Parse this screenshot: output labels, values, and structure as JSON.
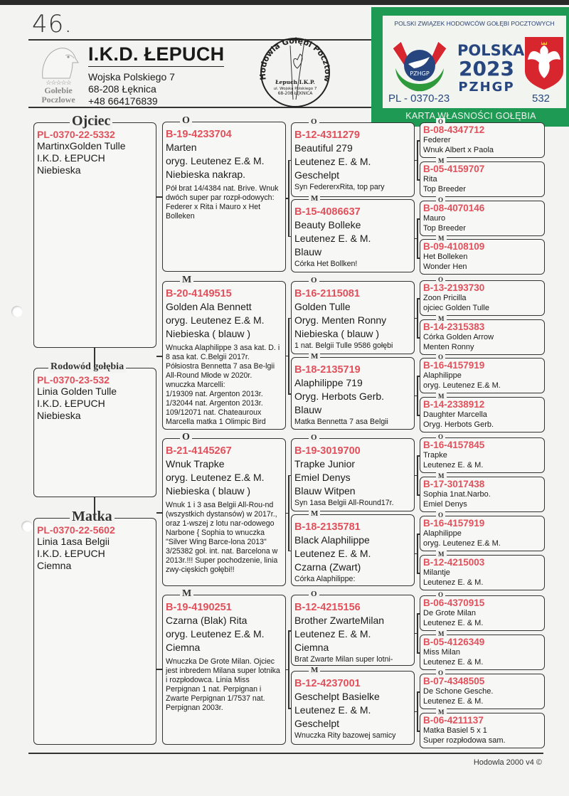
{
  "handwritten_number": "46.",
  "logo": {
    "stars": "☆☆☆☆☆",
    "line1": "Gołebie",
    "line2": "Poczlowe"
  },
  "breeder": {
    "name": "I.K.D. ŁEPUCH",
    "street": "Wojska Polskiego 7",
    "city": "68-208 Łęknica",
    "phone": "+48  664176839"
  },
  "stamp": {
    "ring_text": "Hodowla Gołębi Pocztowych",
    "line1": "Łepuch I.K.P.",
    "line2": "ul. Wojska Polskiego 7",
    "line3": "68-208 ŁĘKNICA"
  },
  "card": {
    "organization": "POLSKI ZWIĄZEK HODOWCÓW GOŁĘBI POCZTOWYCH",
    "country": "POLSKA",
    "year": "2023",
    "union": "PZHGP",
    "badge_text": "PZHGP",
    "ring": "PL - 0370-23",
    "number": "532",
    "title": "KARTA  WŁASNOŚCI GOŁĘBIA POCZTOWEGO",
    "colors": {
      "green": "#1f9a55",
      "navy": "#27467f",
      "red": "#d8262f"
    }
  },
  "colors": {
    "ring_red": "#e2505b"
  },
  "generation1": [
    {
      "label": "Ojciec",
      "ring": "PL-0370-22-5332",
      "lines": [
        "MartinxGolden Tulle",
        "I.K.D. ŁEPUCH",
        "Niebieska"
      ]
    },
    {
      "label": "Rodowód gołębia",
      "ring": "PL-0370-23-532",
      "lines": [
        "Linia Golden Tulle",
        "I.K.D. ŁEPUCH",
        "Niebieska"
      ]
    },
    {
      "label": "Matka",
      "ring": "PL-0370-22-5602",
      "lines": [
        "Linia 1asa Belgii",
        "I.K.D. ŁEPUCH",
        "Ciemna"
      ]
    }
  ],
  "generation2": [
    {
      "label": "O",
      "ring": "B-19-4233704",
      "lines": [
        "Marten",
        "oryg. Leutenez E.& M.",
        "Niebieska nakrap."
      ],
      "note": "Pół brat 14/4384 nat. Brive. Wnuk dwóch super par rozpł-odowych: Federer x Rita i Mauro x Het Bolleken"
    },
    {
      "label": "M",
      "ring": "B-20-4149515",
      "lines": [
        "Golden Ala Bennett",
        "oryg. Leutenez E.& M.",
        "Niebieska ( blauw )"
      ],
      "note": "Wnucka Alaphilippe 3 asa kat. D. i 8 asa kat. C.Belgii 2017r. Półsiostra Bennetta 7 asa Be-lgii All-Round Młode w 2020r.\n        wnuczka Marcelli:\n1/19309 nat. Argenton 2013r.\n1/32044 nat. Argenton 2013r.\n109/12071 nat. Chateauroux\nMarcella matka 1 Olimpic Bird"
    },
    {
      "label": "O",
      "ring": "B-21-4145267",
      "lines": [
        "Wnuk Trapke",
        "oryg. Leutenez E.& M.",
        "Niebieska ( blauw )"
      ],
      "note": "Wnuk 1 i 3 asa Belgii All-Rou-nd (wszystkich dystansów) w 2017r., oraz 1-wszej z lotu nar-odowego Narbone { Sophia to wnuczka \"Silver Wing Barce-lona 2013\" 3/25382 goł. int. nat. Barcelona w 2013r.!!! Super pochodzenie, linia zwy-cięskich gołębi!!"
    },
    {
      "label": "M",
      "ring": "B-19-4190251",
      "lines": [
        "Czarna (Blak) Rita",
        "oryg. Leutenez E.& M.",
        "Ciemna"
      ],
      "note": "Wnuczka De Grote Milan. Ojciec jest inbredem Milana super lotnika i rozpłodowca. Linia Miss Perpignan 1 nat. Perpignan i Zwarte Perpignan 1/7537 nat. Perpignan 2003r."
    }
  ],
  "generation3": [
    {
      "label": "O",
      "ring": "B-12-4311279",
      "lines": [
        "Beautiful 279",
        "Leutenez E. & M.",
        "Geschelpt"
      ],
      "note": "Syn FedererxRita, top pary"
    },
    {
      "label": "M",
      "ring": "B-15-4086637",
      "lines": [
        "Beauty Bolleke",
        "Leutenez E. & M.",
        "Blauw"
      ],
      "note": "Córka Het Bollken!"
    },
    {
      "label": "O",
      "ring": "B-16-2115081",
      "lines": [
        "Golden Tulle",
        "Oryg. Menten Ronny",
        "Niebieska ( blauw )"
      ],
      "note": "1 nat. Belgii Tulle 9586 gołębi"
    },
    {
      "label": "M",
      "ring": "B-18-2135719",
      "lines": [
        "Alaphilippe 719",
        "Oryg. Herbots Gerb.",
        "Blauw"
      ],
      "note": "Matka Bennetta 7 asa Belgii"
    },
    {
      "label": "O",
      "ring": "B-19-3019700",
      "lines": [
        "Trapke Junior",
        "Emiel Denys",
        "Blauw Witpen"
      ],
      "note": "Syn 1asa Belgii All-Round17r."
    },
    {
      "label": "M",
      "ring": "B-18-2135781",
      "lines": [
        "Black Alaphilippe",
        "Leutenez E. & M.",
        "Czarna  (Zwart)"
      ],
      "note": "        Córka Alaphilippe:"
    },
    {
      "label": "O",
      "ring": "B-12-4215156",
      "lines": [
        "Brother ZwarteMilan",
        "Leutenez E. & M.",
        "Ciemna"
      ],
      "note": "Brat Zwarte Milan super lotni-"
    },
    {
      "label": "M",
      "ring": "B-12-4237001",
      "lines": [
        "Geschelpt Basielke",
        "Leutenez E. & M.",
        "Geschelpt"
      ],
      "note": "Wnuczka Rity bazowej samicy"
    }
  ],
  "generation4": [
    {
      "label": "O",
      "ring": "B-08-4347712",
      "lines": [
        "Federer",
        "Wnuk Albert x Paola"
      ]
    },
    {
      "label": "M",
      "ring": "B-05-4159707",
      "lines": [
        "Rita",
        "Top Breeder"
      ]
    },
    {
      "label": "O",
      "ring": "B-08-4070146",
      "lines": [
        "Mauro",
        "Top Breeder"
      ]
    },
    {
      "label": "M",
      "ring": "B-09-4108109",
      "lines": [
        "Het Bolleken",
        "Wonder Hen"
      ]
    },
    {
      "label": "O",
      "ring": "B-13-2193730",
      "lines": [
        "Zoon Pricilla",
        "ojciec Golden Tulle"
      ]
    },
    {
      "label": "M",
      "ring": "B-14-2315383",
      "lines": [
        "Córka Golden Arrow",
        "Menten Ronny"
      ]
    },
    {
      "label": "O",
      "ring": "B-16-4157919",
      "lines": [
        "Alaphilippe",
        "oryg. Leutenez E.& M."
      ]
    },
    {
      "label": "M",
      "ring": "B-14-2338912",
      "lines": [
        "Daughter Marcella",
        "Oryg. Herbots Gerb."
      ]
    },
    {
      "label": "O",
      "ring": "B-16-4157845",
      "lines": [
        "Trapke",
        "Leutenez E. & M."
      ]
    },
    {
      "label": "M",
      "ring": "B-17-3017438",
      "lines": [
        "Sophia 1nat.Narbo.",
        "Emiel Denys"
      ]
    },
    {
      "label": "O",
      "ring": "B-16-4157919",
      "lines": [
        "Alaphilippe",
        "oryg. Leutenez E.& M."
      ]
    },
    {
      "label": "M",
      "ring": "B-12-4215003",
      "lines": [
        "Milantje",
        "Leutenez E. & M."
      ]
    },
    {
      "label": "O",
      "ring": "B-06-4370915",
      "lines": [
        "De Grote Milan",
        "Leutenez E. & M."
      ]
    },
    {
      "label": "M",
      "ring": "B-05-4126349",
      "lines": [
        "Miss Milan",
        "Leutenez E. & M."
      ]
    },
    {
      "label": "O",
      "ring": "B-07-4348505",
      "lines": [
        "De Schone Gesche.",
        "Leutenez E. & M."
      ]
    },
    {
      "label": "M",
      "ring": "B-06-4211137",
      "lines": [
        "Matka Basiel 5 x 1",
        "Super rozpłodowa sam."
      ]
    }
  ],
  "footer": "Hodowla 2000 v4 ©"
}
